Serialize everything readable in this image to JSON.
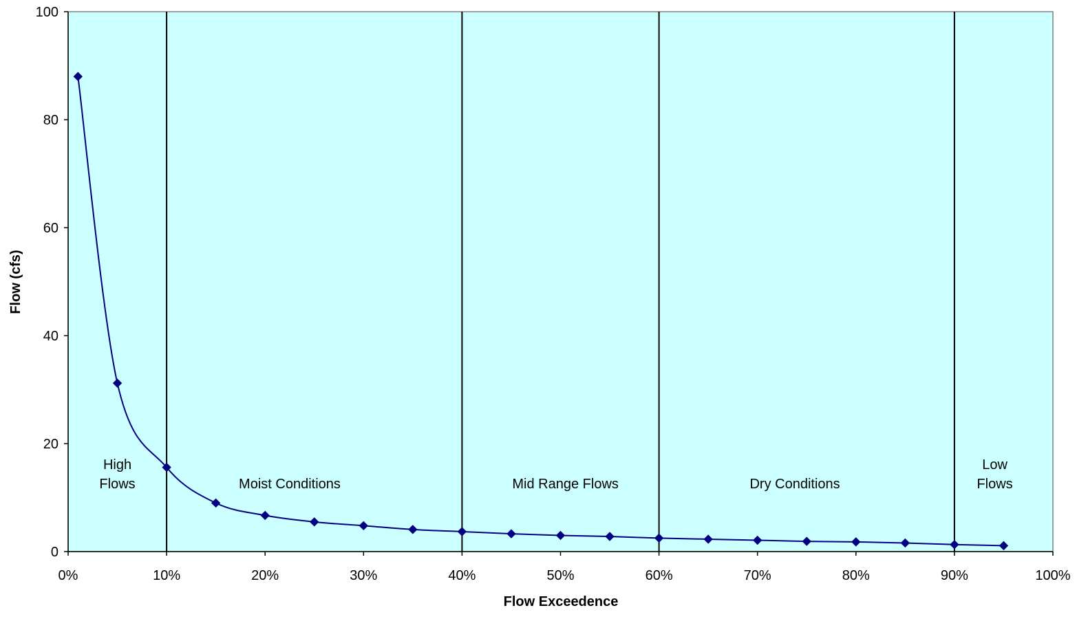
{
  "chart_data": {
    "type": "line",
    "title": "",
    "xlabel": "Flow Exceedence",
    "ylabel": "Flow (cfs)",
    "xlim": [
      0,
      100
    ],
    "ylim": [
      0,
      100
    ],
    "x_ticks": [
      0,
      10,
      20,
      30,
      40,
      50,
      60,
      70,
      80,
      90,
      100
    ],
    "x_tick_labels": [
      "0%",
      "10%",
      "20%",
      "30%",
      "40%",
      "50%",
      "60%",
      "70%",
      "80%",
      "90%",
      "100%"
    ],
    "y_ticks": [
      0,
      20,
      40,
      60,
      80,
      100
    ],
    "y_tick_labels": [
      "0",
      "20",
      "40",
      "60",
      "80",
      "100"
    ],
    "grid": false,
    "legend": "none",
    "plot_background": "#CCFFFF",
    "series_color": "#000080",
    "marker": "diamond",
    "smooth": true,
    "series": [
      {
        "x": [
          1,
          5,
          10,
          15,
          20,
          25,
          30,
          35,
          40,
          45,
          50,
          55,
          60,
          65,
          70,
          75,
          80,
          85,
          90,
          95
        ],
        "y": [
          88,
          31.2,
          15.6,
          9,
          6.7,
          5.5,
          4.8,
          4.1,
          3.7,
          3.3,
          3.0,
          2.8,
          2.5,
          2.3,
          2.1,
          1.9,
          1.8,
          1.6,
          1.3,
          1.1
        ]
      }
    ],
    "dividers": [
      10,
      40,
      60,
      90
    ],
    "regions": [
      {
        "label_lines": [
          "High",
          "Flows"
        ],
        "x": 5
      },
      {
        "label_lines": [
          "Moist Conditions"
        ],
        "x": 22.5
      },
      {
        "label_lines": [
          "Mid Range Flows"
        ],
        "x": 50.5
      },
      {
        "label_lines": [
          "Dry Conditions"
        ],
        "x": 73.8
      },
      {
        "label_lines": [
          "Low",
          "Flows"
        ],
        "x": 94.1
      }
    ]
  }
}
